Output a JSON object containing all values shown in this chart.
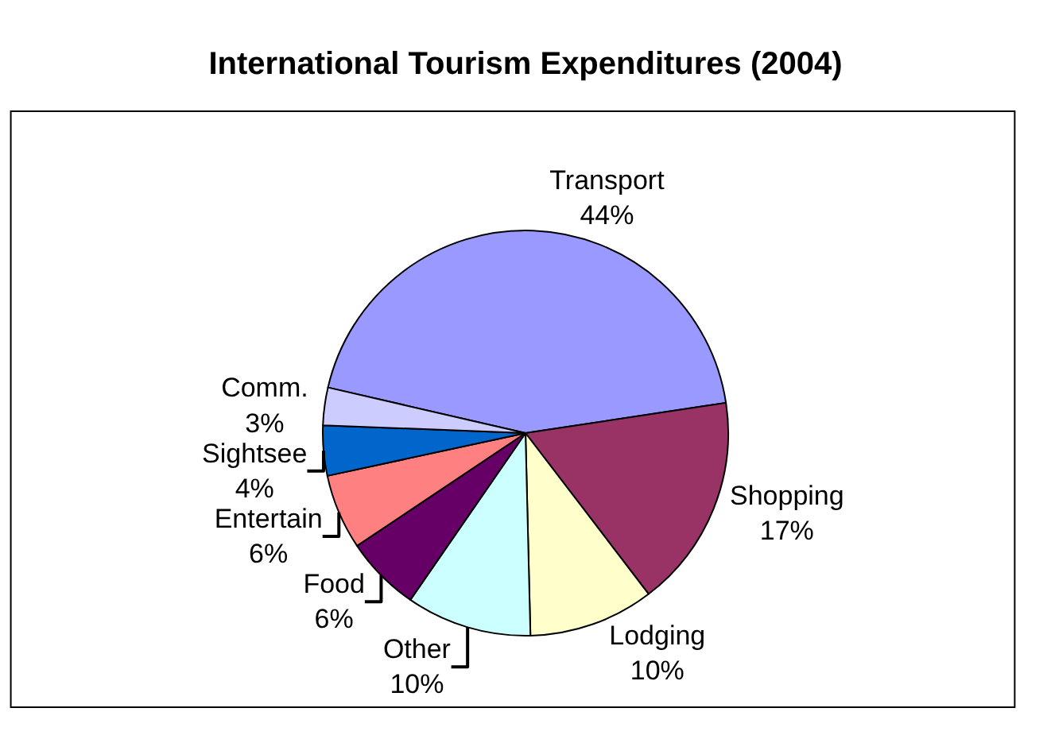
{
  "chart_data": {
    "type": "pie",
    "title": "International Tourism Expenditures (2004)",
    "categories": [
      "Transport",
      "Shopping",
      "Lodging",
      "Other",
      "Food",
      "Entertain",
      "Sightsee",
      "Comm."
    ],
    "values": [
      44,
      17,
      10,
      10,
      6,
      6,
      4,
      3
    ],
    "value_labels": [
      "44%",
      "17%",
      "10%",
      "10%",
      "6%",
      "6%",
      "4%",
      "3%"
    ],
    "colors": [
      "#9999ff",
      "#993366",
      "#ffffcc",
      "#ccffff",
      "#660066",
      "#ff8080",
      "#0066cc",
      "#ccccff"
    ],
    "legend": false
  }
}
